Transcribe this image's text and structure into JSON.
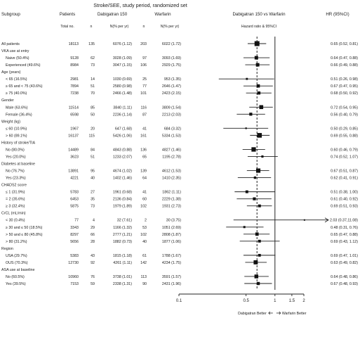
{
  "chart_data": {
    "type": "forest",
    "title": "Stroke/SEE, study period, randomized set",
    "headers": {
      "subgroup": "Subgroup",
      "patients": "Patients",
      "patients_sub": "Total no.",
      "dabigatran": "Dabigatran 150",
      "dabigatran_n": "n",
      "dabigatran_rate": "N(% per yr)",
      "warfarin": "Warfarin",
      "warfarin_n": "n",
      "warfarin_rate": "N(% per yr)",
      "comparison": "Dabigatran 150 vs Warfarin",
      "comparison_sub": "Hazard ratio & 95%CI",
      "hr": "HR (95%CI)"
    },
    "x_axis": {
      "scale": "log",
      "range": [
        0.1,
        2
      ],
      "ticks": [
        {
          "value": 0.1,
          "label": "0.1"
        },
        {
          "value": 0.5,
          "label": "0.5"
        },
        {
          "value": 1,
          "label": "1"
        },
        {
          "value": 1.5,
          "label": "1.5"
        },
        {
          "value": 2,
          "label": "2"
        }
      ],
      "reference": 1,
      "overall_line": 0.65,
      "left_label": "Dabigatran Better",
      "right_label": "Warfarin Better"
    },
    "rows": [
      {
        "type": "data",
        "label": "All patients",
        "patients": "18113",
        "dab_n": "135",
        "dab_rate": "6076 (1.12)",
        "war_n": "203",
        "war_rate": "6022 (1.72)",
        "hr": 0.65,
        "lo": 0.52,
        "hi": 0.81,
        "hr_text": "0.65 (0.52, 0.81)"
      },
      {
        "type": "header",
        "label": "VKA use at entry"
      },
      {
        "type": "data",
        "label": "Naive (50.4%)",
        "patients": "9128",
        "dab_n": "62",
        "dab_rate": "3028 (1.09)",
        "war_n": "97",
        "war_rate": "3093 (1.69)",
        "hr": 0.64,
        "lo": 0.47,
        "hi": 0.88,
        "hr_text": "0.64 (0.47, 0.88)"
      },
      {
        "type": "data",
        "label": "Experienced (49.6%)",
        "patients": "8984",
        "dab_n": "73",
        "dab_rate": "3047 (1.15)",
        "war_n": "106",
        "war_rate": "2929 (1.75)",
        "hr": 0.66,
        "lo": 0.49,
        "hi": 0.88,
        "hr_text": "0.66 (0.49, 0.88)"
      },
      {
        "type": "header",
        "label": "Age (years)"
      },
      {
        "type": "data",
        "label": "< 65 (16.5%)",
        "patients": "2981",
        "dab_n": "14",
        "dab_rate": "1030 (0.69)",
        "war_n": "25",
        "war_rate": "953 (1.35)",
        "hr": 0.51,
        "lo": 0.26,
        "hi": 0.98,
        "hr_text": "0.51 (0.26, 0.98)"
      },
      {
        "type": "data",
        "label": "≥ 65 and < 75 (43.6%)",
        "patients": "7894",
        "dab_n": "51",
        "dab_rate": "2580 (0.98)",
        "war_n": "77",
        "war_rate": "2646 (1.47)",
        "hr": 0.67,
        "lo": 0.47,
        "hi": 0.95,
        "hr_text": "0.67 (0.47, 0.95)"
      },
      {
        "type": "data",
        "label": "≥ 75 (40.0%)",
        "patients": "7238",
        "dab_n": "70",
        "dab_rate": "2466 (1.48)",
        "war_n": "101",
        "war_rate": "2423 (2.15)",
        "hr": 0.68,
        "lo": 0.5,
        "hi": 0.92,
        "hr_text": "0.68 (0.50, 0.92)"
      },
      {
        "type": "header",
        "label": "Gender"
      },
      {
        "type": "data",
        "label": "Male (63.6%)",
        "patients": "11514",
        "dab_n": "85",
        "dab_rate": "3840 (1.11)",
        "war_n": "116",
        "war_rate": "3809 (1.54)",
        "hr": 0.72,
        "lo": 0.54,
        "hi": 0.95,
        "hr_text": "0.72 (0.54, 0.95)"
      },
      {
        "type": "data",
        "label": "Female (36.4%)",
        "patients": "6598",
        "dab_n": "50",
        "dab_rate": "2236 (1.14)",
        "war_n": "87",
        "war_rate": "2213 (2.03)",
        "hr": 0.56,
        "lo": 0.4,
        "hi": 0.79,
        "hr_text": "0.56 (0.40, 0.79)"
      },
      {
        "type": "header",
        "label": "Weight (kg)"
      },
      {
        "type": "data",
        "label": "≤ 60 (10.9%)",
        "patients": "1967",
        "dab_n": "20",
        "dab_rate": "647 (1.68)",
        "war_n": "41",
        "war_rate": "684 (3.32)",
        "hr": 0.5,
        "lo": 0.29,
        "hi": 0.85,
        "hr_text": "0.50 (0.29, 0.85)"
      },
      {
        "type": "data",
        "label": "> 60 (89.1%)",
        "patients": "16137",
        "dab_n": "115",
        "dab_rate": "5426 (1.06)",
        "war_n": "161",
        "war_rate": "5334 (1.53)",
        "hr": 0.69,
        "lo": 0.55,
        "hi": 0.88,
        "hr_text": "0.69 (0.55, 0.88)"
      },
      {
        "type": "header",
        "label": "History of stroke/TIA"
      },
      {
        "type": "data",
        "label": "No (80.0%)",
        "patients": "14489",
        "dab_n": "84",
        "dab_rate": "4843 (0.88)",
        "war_n": "136",
        "war_rate": "4827 (1.46)",
        "hr": 0.6,
        "lo": 0.46,
        "hi": 0.79,
        "hr_text": "0.60 (0.46, 0.79)"
      },
      {
        "type": "data",
        "label": "Yes (20.0%)",
        "patients": "3623",
        "dab_n": "51",
        "dab_rate": "1233 (2.07)",
        "war_n": "65",
        "war_rate": "1195 (2.78)",
        "hr": 0.74,
        "lo": 0.52,
        "hi": 1.07,
        "hr_text": "0.74 (0.52, 1.07)"
      },
      {
        "type": "header",
        "label": "Diabetes at baseline"
      },
      {
        "type": "data",
        "label": "No (76.7%)",
        "patients": "13891",
        "dab_n": "95",
        "dab_rate": "4674 (1.02)",
        "war_n": "139",
        "war_rate": "4612 (1.53)",
        "hr": 0.67,
        "lo": 0.51,
        "hi": 0.87,
        "hr_text": "0.67 (0.51, 0.87)"
      },
      {
        "type": "data",
        "label": "Yes (23.3%)",
        "patients": "4221",
        "dab_n": "40",
        "dab_rate": "1402 (1.46)",
        "war_n": "64",
        "war_rate": "1410 (2.35)",
        "hr": 0.62,
        "lo": 0.41,
        "hi": 0.91,
        "hr_text": "0.62 (0.41, 0.91)"
      },
      {
        "type": "header",
        "label": "CHADS2 score"
      },
      {
        "type": "data",
        "label": "≤ 1 (31.9%)",
        "patients": "5783",
        "dab_n": "27",
        "dab_rate": "1961 (0.68)",
        "war_n": "41",
        "war_rate": "1862 (1.11)",
        "hr": 0.51,
        "lo": 0.38,
        "hi": 1.0,
        "hr_text": "0.51 (0.38, 1.00)"
      },
      {
        "type": "data",
        "label": "= 2 (35.6%)",
        "patients": "6453",
        "dab_n": "35",
        "dab_rate": "2136 (0.84)",
        "war_n": "60",
        "war_rate": "2229 (1.38)",
        "hr": 0.61,
        "lo": 0.4,
        "hi": 0.92,
        "hr_text": "0.61 (0.40, 0.92)"
      },
      {
        "type": "data",
        "label": "≥ 3 (32.4%)",
        "patients": "5875",
        "dab_n": "73",
        "dab_rate": "1979 (1.89)",
        "war_n": "102",
        "war_rate": "1931 (2.73)",
        "hr": 0.69,
        "lo": 0.51,
        "hi": 0.93,
        "hr_text": "0.69 (0.51, 0.93)"
      },
      {
        "type": "header",
        "label": "CrCL (mL/min)"
      },
      {
        "type": "data",
        "label": "< 30 (0.4%)",
        "patients": "77",
        "dab_n": "4",
        "dab_rate": "32 (7.61)",
        "war_n": "2",
        "war_rate": "30 (3.75)",
        "hr": 2.03,
        "lo": 0.37,
        "hi": 11.08,
        "hr_text": "2.03 (0.37,11.08)",
        "arrow": true
      },
      {
        "type": "data",
        "label": "≥ 30 and ≤ 50 (18.5%)",
        "patients": "3343",
        "dab_n": "29",
        "dab_rate": "1166 (1.32)",
        "war_n": "53",
        "war_rate": "1051 (2.69)",
        "hr": 0.48,
        "lo": 0.31,
        "hi": 0.76,
        "hr_text": "0.48 (0.31, 0.76)"
      },
      {
        "type": "data",
        "label": "> 50 and ≤ 80 (45.8%)",
        "patients": "8297",
        "dab_n": "66",
        "dab_rate": "2777 (1.21)",
        "war_n": "102",
        "war_rate": "2808 (1.87)",
        "hr": 0.65,
        "lo": 0.47,
        "hi": 0.88,
        "hr_text": "0.65 (0.47, 0.88)"
      },
      {
        "type": "data",
        "label": "> 80 (31.2%)",
        "patients": "5656",
        "dab_n": "28",
        "dab_rate": "1882 (0.73)",
        "war_n": "40",
        "war_rate": "1877 (1.06)",
        "hr": 0.69,
        "lo": 0.43,
        "hi": 1.12,
        "hr_text": "0.69 (0.43, 1.12)"
      },
      {
        "type": "header",
        "label": "Region"
      },
      {
        "type": "data",
        "label": "USA (29.7%)",
        "patients": "5383",
        "dab_n": "43",
        "dab_rate": "1815 (1.18)",
        "war_n": "61",
        "war_rate": "1788 (1.67)",
        "hr": 0.69,
        "lo": 0.47,
        "hi": 1.01,
        "hr_text": "0.69 (0.47, 1.01)"
      },
      {
        "type": "data",
        "label": "OUS (70.3%)",
        "patients": "12730",
        "dab_n": "92",
        "dab_rate": "4261 (1.11)",
        "war_n": "142",
        "war_rate": "4234 (1.75)",
        "hr": 0.63,
        "lo": 0.49,
        "hi": 0.82,
        "hr_text": "0.63 (0.49, 0.82)"
      },
      {
        "type": "header",
        "label": "ASA use at baseline"
      },
      {
        "type": "data",
        "label": "No (60.5%)",
        "patients": "10960",
        "dab_n": "76",
        "dab_rate": "3738 (1.01)",
        "war_n": "113",
        "war_rate": "3591 (1.57)",
        "hr": 0.64,
        "lo": 0.48,
        "hi": 0.86,
        "hr_text": "0.64 (0.48, 0.86)"
      },
      {
        "type": "data",
        "label": "Yes (39.5%)",
        "patients": "7153",
        "dab_n": "59",
        "dab_rate": "2338 (1.31)",
        "war_n": "90",
        "war_rate": "2431 (1.96)",
        "hr": 0.67,
        "lo": 0.48,
        "hi": 0.93,
        "hr_text": "0.67 (0.48, 0.93)"
      }
    ]
  }
}
